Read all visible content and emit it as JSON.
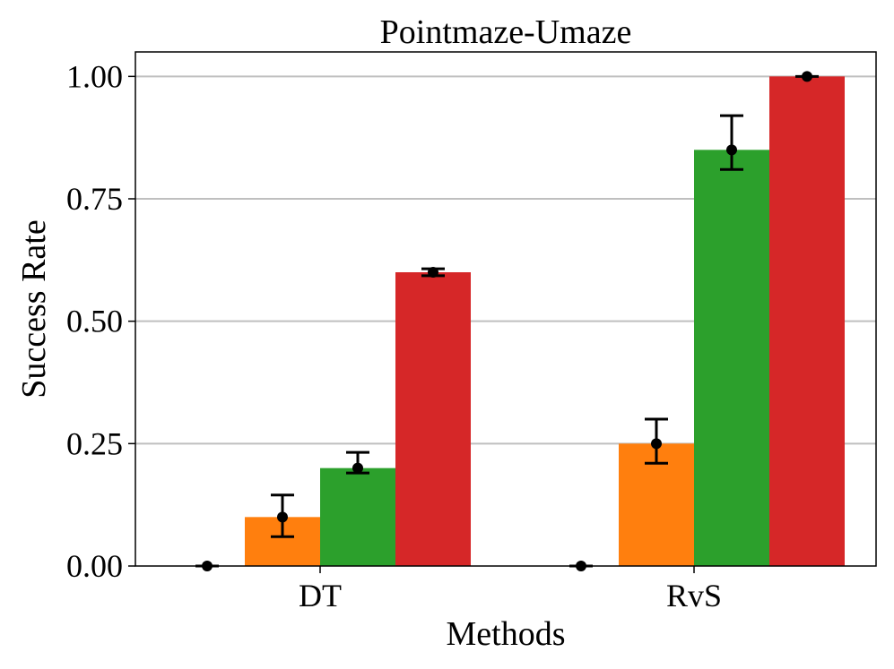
{
  "chart_data": {
    "type": "bar",
    "title": "Pointmaze-Umaze",
    "xlabel": "Methods",
    "ylabel": "Success Rate",
    "categories": [
      "DT",
      "RvS"
    ],
    "ylim": [
      0,
      1.05
    ],
    "yticks": [
      0.0,
      0.25,
      0.5,
      0.75,
      1.0
    ],
    "ytick_labels": [
      "0.00",
      "0.25",
      "0.50",
      "0.75",
      "1.00"
    ],
    "grid": "horizontal",
    "legend": "none",
    "series": [
      {
        "name": "series-1",
        "color": "#1f77b4",
        "values": [
          0.0,
          0.0
        ],
        "err_low": [
          0.0,
          0.0
        ],
        "err_high": [
          0.0,
          0.0
        ]
      },
      {
        "name": "series-2",
        "color": "#ff7f0e",
        "values": [
          0.1,
          0.25
        ],
        "err_low": [
          0.06,
          0.21
        ],
        "err_high": [
          0.145,
          0.3
        ]
      },
      {
        "name": "series-3",
        "color": "#2ca02c",
        "values": [
          0.2,
          0.85
        ],
        "err_low": [
          0.19,
          0.81
        ],
        "err_high": [
          0.232,
          0.92
        ]
      },
      {
        "name": "series-4",
        "color": "#d62728",
        "values": [
          0.6,
          1.0
        ],
        "err_low": [
          0.593,
          1.0
        ],
        "err_high": [
          0.607,
          1.0
        ]
      }
    ]
  }
}
